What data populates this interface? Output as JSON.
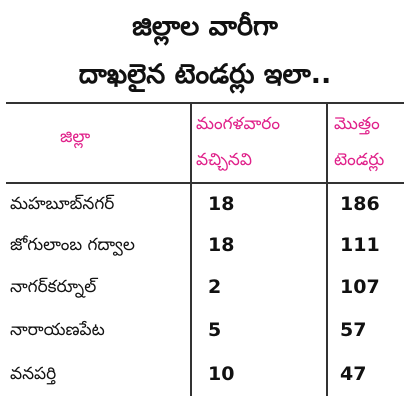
{
  "heading": {
    "line1": "జిల్లాల వారీగా",
    "line2": "దాఖలైన టెండర్లు ఇలా.."
  },
  "table": {
    "headers": {
      "district": "జిల్లా",
      "tuesday_line1": "మంగళవారం",
      "tuesday_line2": "వచ్చినవి",
      "total_line1": "మొత్తం",
      "total_line2": "టెండర్లు"
    },
    "rows": [
      {
        "district": "మహబూబ్‌నగర్",
        "tuesday": "18",
        "total": "186"
      },
      {
        "district": "జోగులాంబ గద్వాల",
        "tuesday": "18",
        "total": "111"
      },
      {
        "district": "నాగర్‌కర్నూల్",
        "tuesday": "2",
        "total": "107"
      },
      {
        "district": "నారాయణపేట",
        "tuesday": "5",
        "total": "57"
      },
      {
        "district": "వనపర్తి",
        "tuesday": "10",
        "total": "47"
      }
    ]
  },
  "colors": {
    "header_text": "#e0218a",
    "body_text": "#111111",
    "rules": "#333333"
  }
}
